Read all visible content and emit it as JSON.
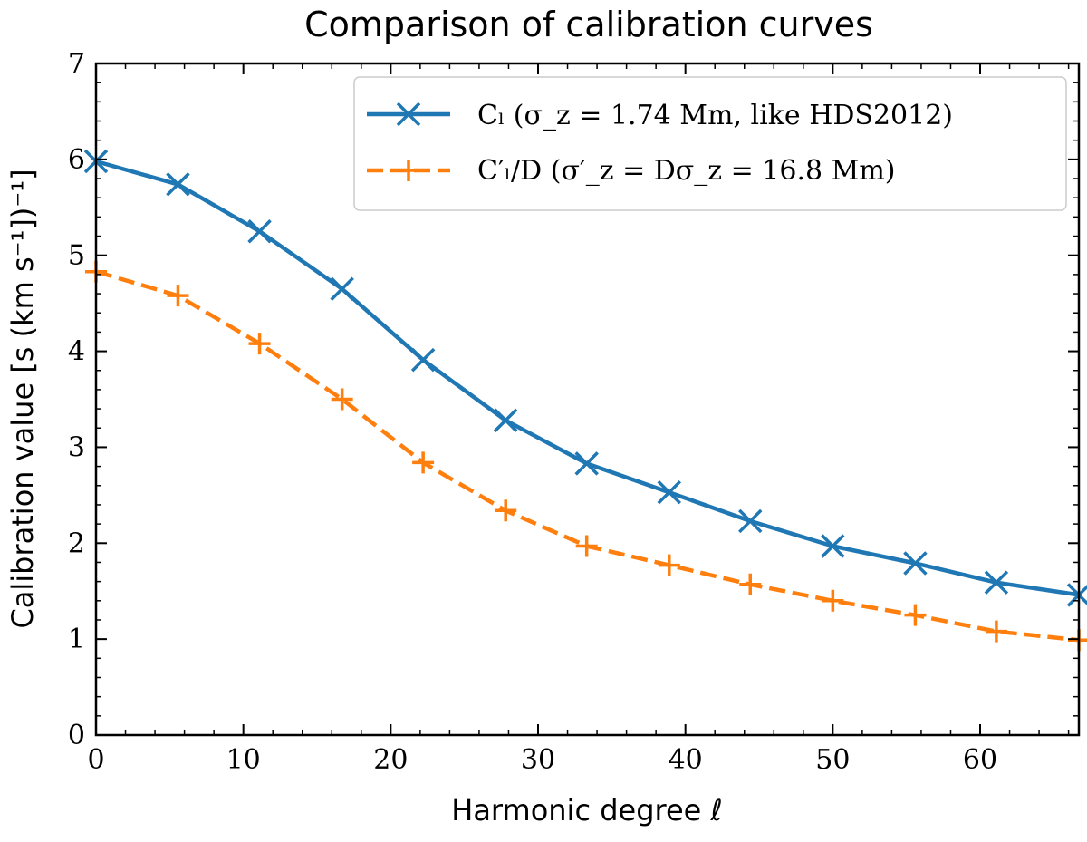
{
  "chart_data": {
    "type": "line",
    "title": "Comparison of calibration curves",
    "xlabel": "Harmonic degree ℓ",
    "ylabel": "Calibration value [s (km s⁻¹])⁻¹]",
    "xlim": [
      0,
      66.7
    ],
    "ylim": [
      0,
      7
    ],
    "xticks": [
      0,
      10,
      20,
      30,
      40,
      50,
      60
    ],
    "yticks": [
      0,
      1,
      2,
      3,
      4,
      5,
      6,
      7
    ],
    "legend_position": "top-right",
    "series": [
      {
        "name": "C_l (σ_z = 1.74 Mm, like HDS2012)",
        "legend_label": "Cₗ (σ_z = 1.74 Mm, like HDS2012)",
        "color": "#1f77b4",
        "line_style": "solid",
        "marker": "x",
        "x": [
          0,
          5.56,
          11.1,
          16.7,
          22.2,
          27.8,
          33.3,
          38.9,
          44.4,
          50.0,
          55.6,
          61.1,
          66.7
        ],
        "values": [
          5.98,
          5.74,
          5.25,
          4.65,
          3.91,
          3.28,
          2.83,
          2.53,
          2.23,
          1.97,
          1.79,
          1.59,
          1.46
        ]
      },
      {
        "name": "C'_l/D (σ'_z = Dσ_z = 16.8 Mm)",
        "legend_label": "C′ₗ/D (σ′_z = Dσ_z = 16.8 Mm)",
        "color": "#ff7f0e",
        "line_style": "dashed",
        "marker": "+",
        "x": [
          0,
          5.56,
          11.1,
          16.7,
          22.2,
          27.8,
          33.3,
          38.9,
          44.4,
          50.0,
          55.6,
          61.1,
          66.7
        ],
        "values": [
          4.83,
          4.58,
          4.08,
          3.5,
          2.84,
          2.34,
          1.97,
          1.77,
          1.57,
          1.4,
          1.25,
          1.08,
          0.99
        ]
      }
    ]
  }
}
